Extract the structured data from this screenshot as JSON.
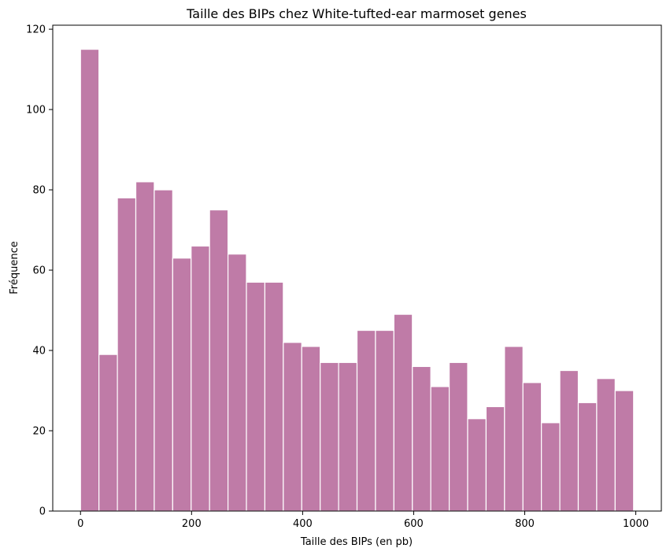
{
  "chart_data": {
    "type": "bar",
    "title": "Taille des BIPs chez White-tufted-ear marmoset genes",
    "xlabel": "Taille des BIPs (en pb)",
    "ylabel": "Fréquence",
    "bin_edges": [
      0,
      33.2,
      66.4,
      99.6,
      132.8,
      166,
      199.2,
      232.4,
      265.6,
      298.8,
      332,
      365.2,
      398.4,
      431.6,
      464.8,
      498,
      531.2,
      564.4,
      597.6,
      630.8,
      664,
      697.2,
      730.4,
      763.6,
      796.8,
      830,
      863.2,
      896.4,
      929.6,
      962.8,
      996
    ],
    "values": [
      115,
      39,
      78,
      82,
      80,
      63,
      66,
      75,
      64,
      57,
      57,
      42,
      41,
      37,
      37,
      45,
      45,
      49,
      36,
      31,
      37,
      23,
      26,
      41,
      32,
      22,
      35,
      27,
      33,
      30
    ],
    "xlim": [
      -50,
      1046
    ],
    "ylim": [
      0,
      121
    ],
    "x_ticks": [
      0,
      200,
      400,
      600,
      800,
      1000
    ],
    "y_ticks": [
      0,
      20,
      40,
      60,
      80,
      100,
      120
    ],
    "grid": false,
    "bar_color": "#bf7ba7",
    "edge_color": "#ffffff"
  }
}
